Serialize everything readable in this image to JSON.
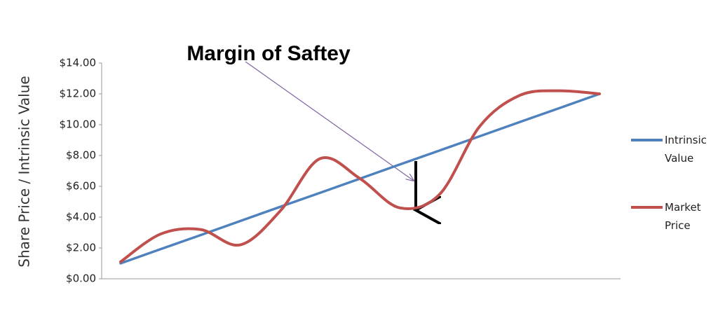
{
  "chart_data": {
    "type": "line",
    "title": "Margin of Saftey",
    "y_label": "Share Price / Intrinsic Value",
    "categories": [
      null,
      null,
      null,
      null,
      null,
      null,
      null,
      null,
      null,
      null,
      null,
      null,
      null
    ],
    "series": [
      {
        "name": "Intrinsic Value",
        "color": "#4f81bd",
        "values": [
          1,
          1.92,
          2.83,
          3.75,
          4.67,
          5.58,
          6.5,
          7.42,
          8.33,
          9.25,
          10.17,
          11.08,
          12
        ]
      },
      {
        "name": "Market Price",
        "color": "#c0504d",
        "values": [
          1.1,
          2.9,
          3.2,
          2.2,
          4.4,
          7.8,
          6.5,
          4.6,
          5.5,
          9.9,
          11.9,
          12.2,
          12.0
        ]
      }
    ],
    "ylim": [
      0,
      14
    ],
    "yticks": [
      {
        "value": 0,
        "label": "$0.00"
      },
      {
        "value": 2,
        "label": "$2.00"
      },
      {
        "value": 4,
        "label": "$4.00"
      },
      {
        "value": 6,
        "label": "$6.00"
      },
      {
        "value": 8,
        "label": "$8.00"
      },
      {
        "value": 10,
        "label": "$10.00"
      },
      {
        "value": 12,
        "label": "$12.00"
      },
      {
        "value": 14,
        "label": "$14.00"
      }
    ],
    "grid": false,
    "smooth": true,
    "legend": "right"
  }
}
